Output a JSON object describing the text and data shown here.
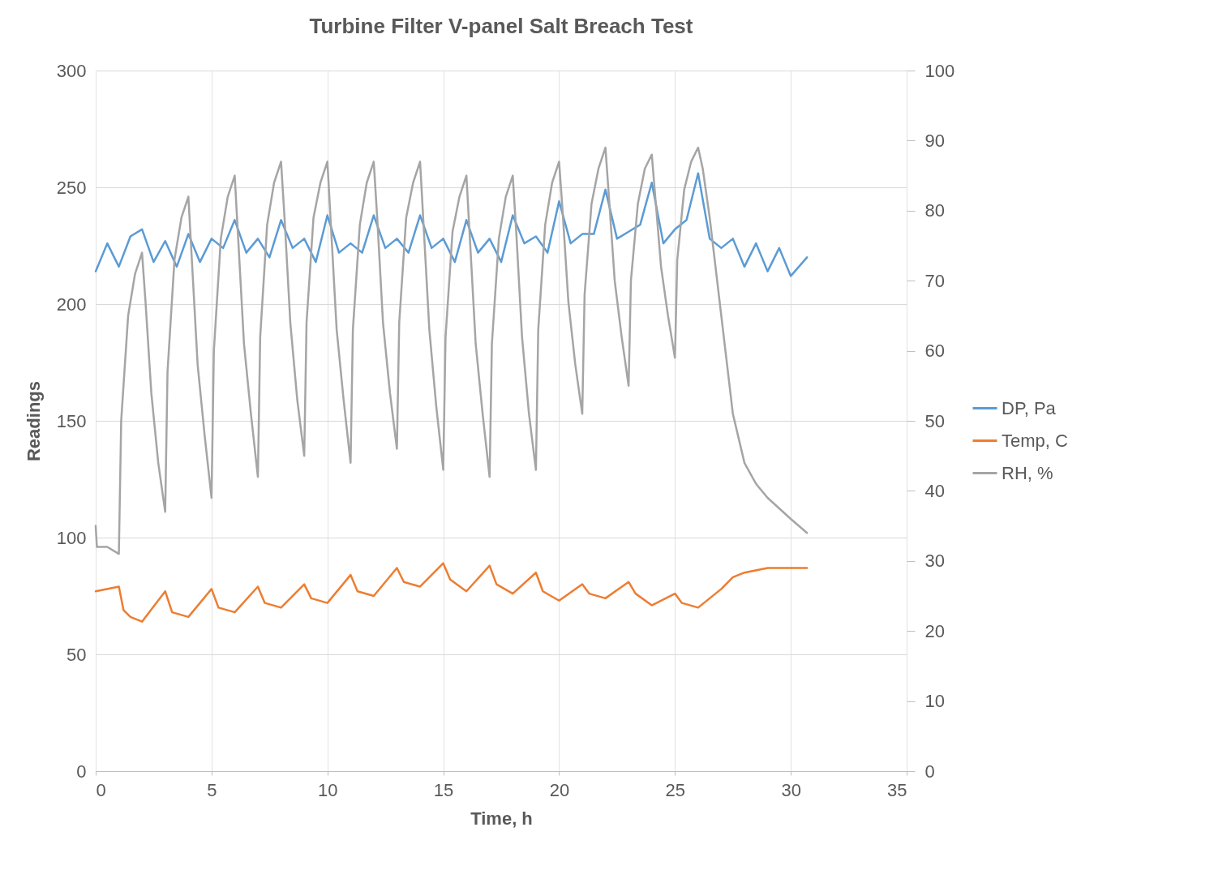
{
  "chart_data": {
    "type": "line",
    "title": "Turbine Filter V-panel Salt Breach Test",
    "xlabel": "Time, h",
    "ylabel": "Readings",
    "xlim": [
      0,
      35
    ],
    "xticks": [
      0,
      5,
      10,
      15,
      20,
      25,
      30,
      35
    ],
    "ylim": [
      0,
      300
    ],
    "yticks": [
      0,
      50,
      100,
      150,
      200,
      250,
      300
    ],
    "y2lim": [
      0,
      100
    ],
    "y2ticks": [
      0,
      10,
      20,
      30,
      40,
      50,
      60,
      70,
      80,
      90,
      100
    ],
    "grid": true,
    "legend": "right",
    "marker": "none",
    "line_style": "solid",
    "series": [
      {
        "name": "DP, Pa",
        "color": "#5b9bd5",
        "x": [
          0,
          0.5,
          1,
          1.5,
          2,
          2.5,
          3,
          3.5,
          4,
          4.5,
          5,
          5.5,
          6,
          6.5,
          7,
          7.5,
          8,
          8.5,
          9,
          9.5,
          10,
          10.5,
          11,
          11.5,
          12,
          12.5,
          13,
          13.5,
          14,
          14.5,
          15,
          15.5,
          16,
          16.5,
          17,
          17.5,
          18,
          18.5,
          19,
          19.5,
          20,
          20.5,
          21,
          21.5,
          22,
          22.5,
          23,
          23.5,
          24,
          24.5,
          25,
          25.5,
          26,
          26.5,
          27,
          27.5,
          28,
          28.5,
          29,
          29.5,
          30,
          30.7
        ],
        "values": [
          214,
          226,
          216,
          229,
          232,
          218,
          227,
          216,
          230,
          218,
          228,
          224,
          236,
          222,
          228,
          220,
          236,
          224,
          228,
          218,
          238,
          222,
          226,
          222,
          238,
          224,
          228,
          222,
          238,
          224,
          228,
          218,
          236,
          222,
          228,
          218,
          238,
          226,
          229,
          222,
          244,
          226,
          230,
          230,
          249,
          228,
          231,
          234,
          252,
          226,
          232,
          236,
          256,
          228,
          224,
          228,
          216,
          226,
          214,
          224,
          212,
          220
        ]
      },
      {
        "name": "Temp, C",
        "color": "#ed7d31",
        "x": [
          0,
          1,
          1.2,
          1.5,
          2,
          3,
          3.3,
          4,
          5,
          5.3,
          6,
          7,
          7.3,
          8,
          9,
          9.3,
          10,
          11,
          11.3,
          12,
          13,
          13.3,
          14,
          15,
          15.3,
          16,
          17,
          17.3,
          18,
          19,
          19.3,
          20,
          21,
          21.3,
          22,
          23,
          23.3,
          24,
          25,
          25.3,
          26,
          27,
          27.5,
          28,
          29,
          30,
          30.7
        ],
        "values": [
          77,
          79,
          69,
          66,
          64,
          77,
          68,
          66,
          78,
          70,
          68,
          79,
          72,
          70,
          80,
          74,
          72,
          84,
          77,
          75,
          87,
          81,
          79,
          89,
          82,
          77,
          88,
          80,
          76,
          85,
          77,
          73,
          80,
          76,
          74,
          81,
          76,
          71,
          76,
          72,
          70,
          78,
          83,
          85,
          87,
          87,
          87
        ]
      },
      {
        "name": "RH, %",
        "color": "#a5a5a5",
        "axis": "y2",
        "x": [
          0,
          0.05,
          0.5,
          1,
          1.1,
          1.4,
          1.7,
          2,
          2.15,
          2.4,
          2.7,
          3,
          3.1,
          3.4,
          3.7,
          4,
          4.15,
          4.4,
          4.7,
          5,
          5.1,
          5.4,
          5.7,
          6,
          6.15,
          6.4,
          6.7,
          7,
          7.1,
          7.4,
          7.7,
          8,
          8.15,
          8.4,
          8.7,
          9,
          9.1,
          9.4,
          9.7,
          10,
          10.15,
          10.4,
          10.7,
          11,
          11.1,
          11.4,
          11.7,
          12,
          12.15,
          12.4,
          12.7,
          13,
          13.1,
          13.4,
          13.7,
          14,
          14.15,
          14.4,
          14.7,
          15,
          15.1,
          15.4,
          15.7,
          16,
          16.15,
          16.4,
          16.7,
          17,
          17.1,
          17.4,
          17.7,
          18,
          18.15,
          18.4,
          18.7,
          19,
          19.1,
          19.4,
          19.7,
          20,
          20.15,
          20.4,
          20.7,
          21,
          21.1,
          21.4,
          21.7,
          22,
          22.15,
          22.4,
          22.7,
          23,
          23.1,
          23.4,
          23.7,
          24,
          24.15,
          24.4,
          24.7,
          25,
          25.1,
          25.4,
          25.7,
          26,
          26.2,
          26.5,
          27,
          27.5,
          28,
          28.5,
          29,
          30,
          30.7
        ],
        "values": [
          35,
          32,
          32,
          31,
          50,
          65,
          71,
          74,
          67,
          54,
          44,
          37,
          57,
          73,
          79,
          82,
          73,
          58,
          48,
          39,
          60,
          76,
          82,
          85,
          76,
          61,
          51,
          42,
          62,
          78,
          84,
          87,
          79,
          64,
          53,
          45,
          64,
          79,
          84,
          87,
          78,
          63,
          53,
          44,
          63,
          78,
          84,
          87,
          79,
          64,
          54,
          46,
          64,
          79,
          84,
          87,
          78,
          63,
          52,
          43,
          62,
          77,
          82,
          85,
          76,
          61,
          51,
          42,
          61,
          76,
          82,
          85,
          77,
          62,
          51,
          43,
          63,
          78,
          84,
          87,
          80,
          67,
          58,
          51,
          68,
          81,
          86,
          89,
          82,
          70,
          62,
          55,
          70,
          81,
          86,
          88,
          82,
          72,
          65,
          59,
          73,
          83,
          87,
          89,
          86,
          79,
          65,
          51,
          44,
          41,
          39,
          36,
          34
        ]
      }
    ]
  }
}
